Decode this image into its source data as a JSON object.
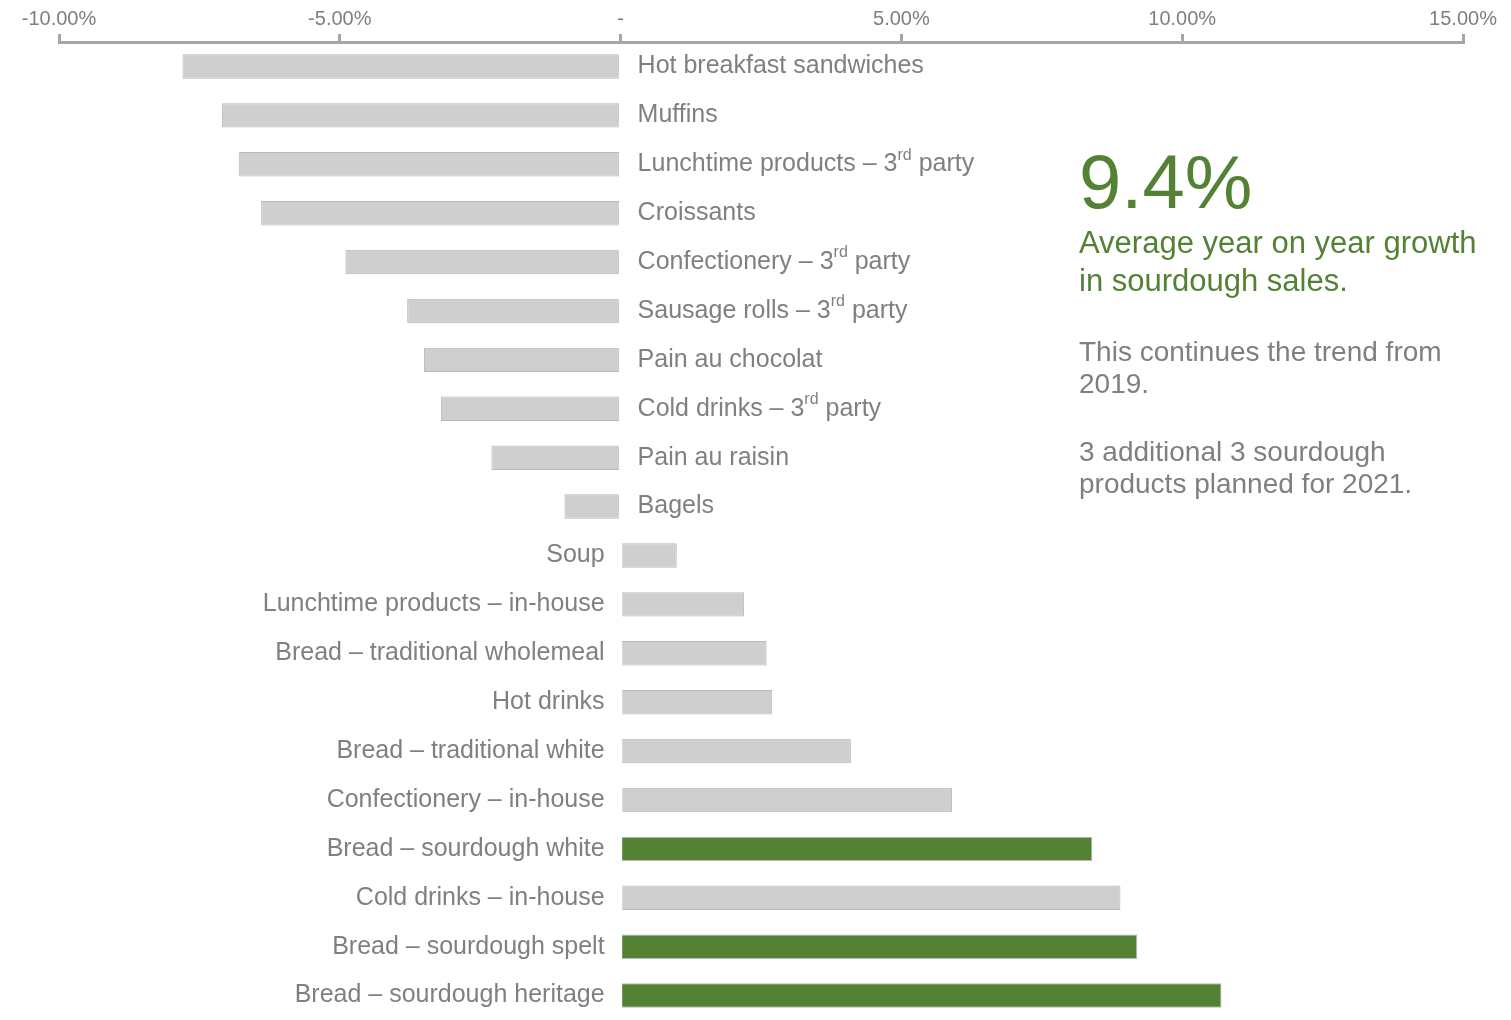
{
  "chart_data": {
    "type": "bar",
    "orientation": "horizontal",
    "categories": [
      "Hot breakfast sandwiches",
      "Muffins",
      "Lunchtime products – 3$^{rd}$ party",
      "Croissants",
      "Confectionery – 3$^{rd}$ party",
      "Sausage rolls – 3$^{rd}$ party",
      "Pain au chocolat",
      "Cold drinks – 3$^{rd}$ party",
      "Pain au raisin",
      "Bagels",
      "Soup",
      "Lunchtime products – in-house",
      "Bread – traditional wholemeal",
      "Hot drinks",
      "Bread – traditional white",
      "Confectionery – in-house",
      "Bread – sourdough white",
      "Cold drinks – in-house",
      "Bread – sourdough spelt",
      "Bread – sourdough heritage"
    ],
    "values": [
      -7.8,
      -7.1,
      -6.8,
      -6.4,
      -4.9,
      -3.8,
      -3.5,
      -3.2,
      -2.3,
      -1.0,
      1.0,
      2.2,
      2.6,
      2.7,
      4.1,
      5.9,
      8.4,
      8.9,
      9.2,
      10.7
    ],
    "colors": [
      "#d0cfd0",
      "#d0cfd0",
      "#d0cfd0",
      "#d0cfd0",
      "#d0cfd0",
      "#d0cfd0",
      "#d0cfd0",
      "#d0cfd0",
      "#d0cfd0",
      "#d0cfd0",
      "#d0cfd0",
      "#d0cfd0",
      "#d0cfd0",
      "#d0cfd0",
      "#d0cfd0",
      "#d0cfd0",
      "#548235",
      "#d0cfd0",
      "#548235",
      "#548235"
    ],
    "xlim": [
      -10,
      15
    ],
    "xticks": [
      {
        "value": -10,
        "label": "-10.00%"
      },
      {
        "value": -5,
        "label": "-5.00%"
      },
      {
        "value": 0,
        "label": "-"
      },
      {
        "value": 5,
        "label": "5.00%"
      },
      {
        "value": 10,
        "label": "10.00%"
      },
      {
        "value": 15,
        "label": "15.00%"
      }
    ],
    "legend": false,
    "annotations": [
      "9.4%",
      "Average year on year growth in sourdough sales.",
      "This continues the trend from 2019.",
      "3 additional 3 sourdough products planned for 2021."
    ]
  }
}
